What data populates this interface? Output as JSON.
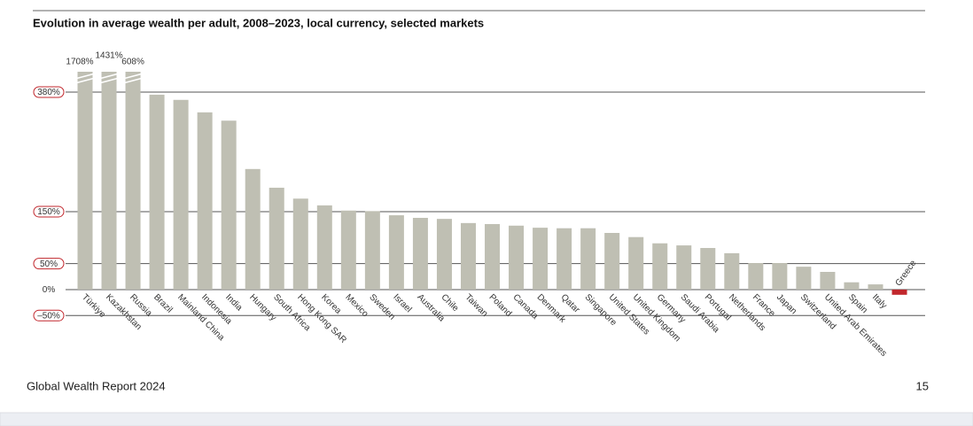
{
  "chart_data": {
    "type": "bar",
    "title": "Evolution in average wealth per adult, 2008–2023, local currency, selected markets",
    "categories": [
      "Türkiye",
      "Kazakhstan",
      "Russia",
      "Brazil",
      "Mainland China",
      "Indonesia",
      "India",
      "Hungary",
      "South Africa",
      "Hong Kong SAR",
      "Korea",
      "Mexico",
      "Sweden",
      "Israel",
      "Australia",
      "Chile",
      "Taiwan",
      "Poland",
      "Canada",
      "Denmark",
      "Qatar",
      "Singapore",
      "United States",
      "United Kingdom",
      "Germany",
      "Saudi Arabia",
      "Portugal",
      "Netherlands",
      "France",
      "Japan",
      "Switzerland",
      "United Arab Emirates",
      "Spain",
      "Italy",
      "Greece"
    ],
    "values": [
      1708,
      1431,
      608,
      375,
      365,
      341,
      325,
      232,
      196,
      175,
      162,
      152,
      151,
      143,
      138,
      136,
      128,
      126,
      123,
      119,
      118,
      118,
      109,
      101,
      89,
      85,
      80,
      70,
      51,
      51,
      44,
      34,
      14,
      10,
      -10
    ],
    "value_labels": [
      "1708%",
      "1431%",
      "608%",
      null,
      null,
      null,
      null,
      null,
      null,
      null,
      null,
      null,
      null,
      null,
      null,
      null,
      null,
      null,
      null,
      null,
      null,
      null,
      null,
      null,
      null,
      null,
      null,
      null,
      null,
      null,
      null,
      null,
      null,
      null,
      null
    ],
    "color": "#bfbfb3",
    "negative_color": "#c1272d",
    "ylim": [
      -50,
      420
    ],
    "yticks": [
      {
        "value": -50,
        "label": "–50%"
      },
      {
        "value": 0,
        "label": "0%"
      },
      {
        "value": 50,
        "label": "50%"
      },
      {
        "value": 150,
        "label": "150%"
      },
      {
        "value": 380,
        "label": "380%"
      }
    ],
    "grid": true
  },
  "footer": {
    "source": "Global Wealth Report 2024",
    "page": "15"
  }
}
